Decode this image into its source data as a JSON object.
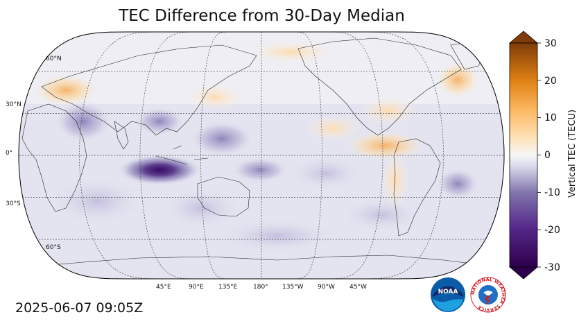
{
  "title": "TEC Difference from 30-Day Median",
  "timestamp": "2025-06-07 09:05Z",
  "map": {
    "projection": "Robinson",
    "central_longitude": 180,
    "lat_labels": [
      "60°N",
      "30°N",
      "0°",
      "30°S",
      "60°S"
    ],
    "lon_labels": [
      "45°E",
      "90°E",
      "135°E",
      "180°",
      "135°W",
      "90°W",
      "45°W"
    ],
    "gridlines": "dashed"
  },
  "colorbar": {
    "label": "Vertical TEC (TECU)",
    "ticks": [
      "30",
      "20",
      "10",
      "0",
      "-10",
      "-20",
      "-30"
    ],
    "range": [
      -30,
      30
    ],
    "extend": "both",
    "colors": {
      "max": "#7f3b08",
      "high": "#e08214",
      "mid_high": "#fdb863",
      "zero": "#f7f7f7",
      "mid_low": "#b2abd2",
      "low": "#8073ac",
      "min": "#2d004b"
    }
  },
  "logos": {
    "noaa_text": "NOAA",
    "nws_text": "NATIONAL WEATHER SERVICE"
  }
}
